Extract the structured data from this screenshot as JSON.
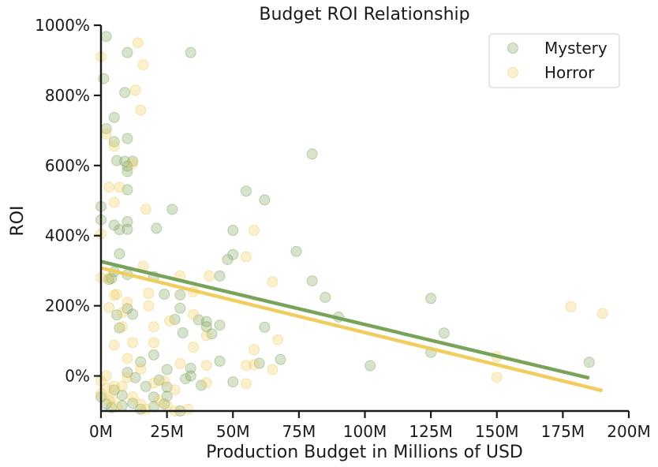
{
  "chart_data": {
    "type": "scatter",
    "title": "Budget ROI Relationship",
    "xlabel": "Production Budget in Millions of USD",
    "ylabel": "ROI",
    "xlim": [
      0,
      200
    ],
    "ylim": [
      -100,
      1000
    ],
    "x_ticks": [
      0,
      25,
      50,
      75,
      100,
      125,
      150,
      175,
      200
    ],
    "x_tick_labels": [
      "0M",
      "25M",
      "50M",
      "75M",
      "100M",
      "125M",
      "150M",
      "175M",
      "200M"
    ],
    "y_ticks": [
      0,
      200,
      400,
      600,
      800,
      1000
    ],
    "y_tick_labels": [
      "0%",
      "200%",
      "400%",
      "600%",
      "800%",
      "1000%"
    ],
    "legend_position": "top-right",
    "grid": false,
    "series": [
      {
        "name": "Mystery",
        "color": "#7aa35a",
        "points": [
          [
            2,
            968
          ],
          [
            1,
            848
          ],
          [
            2,
            705
          ],
          [
            10,
            922
          ],
          [
            34,
            922
          ],
          [
            9,
            808
          ],
          [
            5,
            737
          ],
          [
            5,
            668
          ],
          [
            10,
            677
          ],
          [
            6,
            614
          ],
          [
            9,
            612
          ],
          [
            12,
            612
          ],
          [
            10,
            598
          ],
          [
            10,
            583
          ],
          [
            27,
            475
          ],
          [
            10,
            531
          ],
          [
            0,
            483
          ],
          [
            0,
            445
          ],
          [
            5,
            430
          ],
          [
            7,
            417
          ],
          [
            10,
            440
          ],
          [
            10,
            418
          ],
          [
            21,
            421
          ],
          [
            7,
            348
          ],
          [
            10,
            289
          ],
          [
            5,
            297
          ],
          [
            4,
            278
          ],
          [
            3,
            275
          ],
          [
            6,
            174
          ],
          [
            7,
            137
          ],
          [
            10,
            192
          ],
          [
            12,
            176
          ],
          [
            20,
            283
          ],
          [
            24,
            233
          ],
          [
            30,
            231
          ],
          [
            30,
            193
          ],
          [
            28,
            161
          ],
          [
            31,
            123
          ],
          [
            37,
            160
          ],
          [
            40,
            155
          ],
          [
            40,
            140
          ],
          [
            42,
            120
          ],
          [
            45,
            285
          ],
          [
            48,
            332
          ],
          [
            50,
            346
          ],
          [
            50,
            415
          ],
          [
            55,
            527
          ],
          [
            62,
            502
          ],
          [
            45,
            145
          ],
          [
            62,
            139
          ],
          [
            74,
            355
          ],
          [
            80,
            271
          ],
          [
            80,
            633
          ],
          [
            85,
            224
          ],
          [
            90,
            168
          ],
          [
            125,
            221
          ],
          [
            130,
            122
          ],
          [
            125,
            67
          ],
          [
            102,
            29
          ],
          [
            185,
            39
          ],
          [
            20,
            60
          ],
          [
            25,
            18
          ],
          [
            34,
            22
          ],
          [
            34,
            0
          ],
          [
            32,
            -8
          ],
          [
            38,
            -27
          ],
          [
            45,
            42
          ],
          [
            50,
            -17
          ],
          [
            60,
            36
          ],
          [
            68,
            47
          ],
          [
            15,
            40
          ],
          [
            13,
            -5
          ],
          [
            17,
            -30
          ],
          [
            20,
            -60
          ],
          [
            22,
            -12
          ],
          [
            25,
            -32
          ],
          [
            25,
            -58
          ],
          [
            24,
            -80
          ],
          [
            10,
            10
          ],
          [
            8,
            -55
          ],
          [
            5,
            -40
          ],
          [
            0,
            -60
          ],
          [
            2,
            -80
          ],
          [
            4,
            -90
          ],
          [
            8,
            -85
          ],
          [
            12,
            -78
          ],
          [
            15,
            -95
          ],
          [
            20,
            -88
          ],
          [
            30,
            -100
          ]
        ],
        "trend": {
          "x": [
            0,
            185
          ],
          "y": [
            326,
            -6
          ]
        }
      },
      {
        "name": "Horror",
        "color": "#f0cd5e",
        "points": [
          [
            0,
            910
          ],
          [
            14,
            950
          ],
          [
            16,
            887
          ],
          [
            13,
            815
          ],
          [
            15,
            758
          ],
          [
            2,
            690
          ],
          [
            5,
            655
          ],
          [
            12,
            605
          ],
          [
            3,
            538
          ],
          [
            7,
            538
          ],
          [
            5,
            495
          ],
          [
            17,
            475
          ],
          [
            0,
            405
          ],
          [
            3,
            280
          ],
          [
            0,
            280
          ],
          [
            10,
            210
          ],
          [
            6,
            233
          ],
          [
            5,
            230
          ],
          [
            18,
            236
          ],
          [
            16,
            313
          ],
          [
            30,
            285
          ],
          [
            35,
            240
          ],
          [
            41,
            285
          ],
          [
            55,
            340
          ],
          [
            58,
            415
          ],
          [
            65,
            268
          ],
          [
            20,
            140
          ],
          [
            26,
            157
          ],
          [
            35,
            175
          ],
          [
            40,
            115
          ],
          [
            35,
            82
          ],
          [
            20,
            95
          ],
          [
            12,
            95
          ],
          [
            8,
            140
          ],
          [
            5,
            88
          ],
          [
            18,
            200
          ],
          [
            3,
            195
          ],
          [
            55,
            30
          ],
          [
            55,
            -22
          ],
          [
            58,
            32
          ],
          [
            65,
            18
          ],
          [
            67,
            103
          ],
          [
            58,
            75
          ],
          [
            40,
            -20
          ],
          [
            30,
            35
          ],
          [
            28,
            -40
          ],
          [
            20,
            -20
          ],
          [
            10,
            -5
          ],
          [
            5,
            -30
          ],
          [
            0,
            -50
          ],
          [
            2,
            -35
          ],
          [
            4,
            -60
          ],
          [
            8,
            -30
          ],
          [
            12,
            -60
          ],
          [
            15,
            -80
          ],
          [
            17,
            -95
          ],
          [
            22,
            -70
          ],
          [
            25,
            -85
          ],
          [
            28,
            -100
          ],
          [
            33,
            -95
          ],
          [
            2,
            0
          ],
          [
            0,
            -15
          ],
          [
            10,
            50
          ],
          [
            3,
            -70
          ],
          [
            6,
            -88
          ],
          [
            178,
            197
          ],
          [
            190,
            178
          ],
          [
            150,
            55
          ],
          [
            150,
            -4
          ],
          [
            40,
            30
          ],
          [
            15,
            20
          ],
          [
            8,
            180
          ],
          [
            24,
            -15
          ]
        ],
        "trend": {
          "x": [
            0,
            190
          ],
          "y": [
            308,
            -42
          ]
        }
      }
    ]
  }
}
